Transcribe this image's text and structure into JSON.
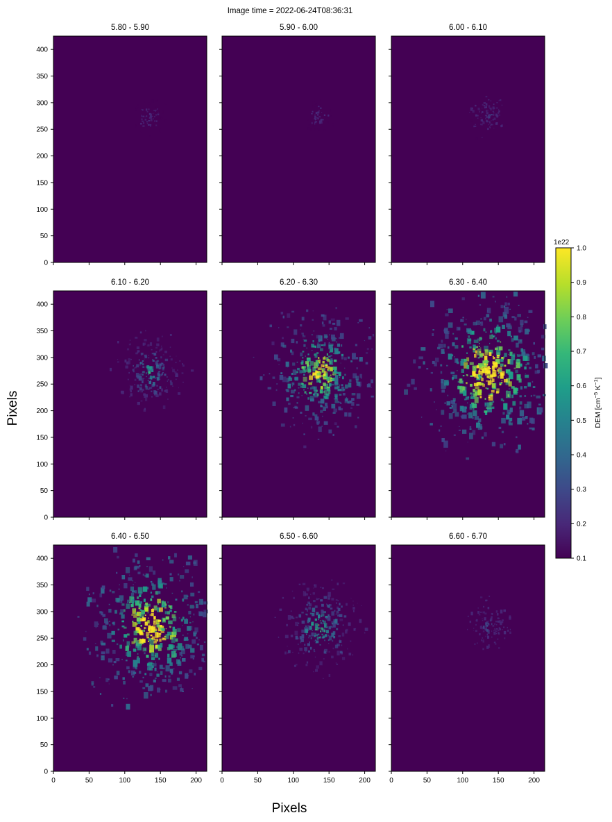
{
  "chart_data": {
    "type": "heatmap",
    "title": "Image time = 2022-06-24T08:36:31",
    "xlabel": "Pixels",
    "ylabel": "Pixels",
    "xlim": [
      0,
      215
    ],
    "ylim": [
      0,
      425
    ],
    "x_ticks": [
      0,
      50,
      100,
      150,
      200
    ],
    "y_ticks": [
      0,
      50,
      100,
      150,
      200,
      250,
      300,
      350,
      400
    ],
    "grid": false,
    "colormap": "viridis",
    "colorbar": {
      "label": "DEM [cm^-5 K^-1]",
      "label_main": "DEM [cm",
      "label_exp1": "−5",
      "label_mid": " K",
      "label_exp2": "−1",
      "label_end": "]",
      "offset_text": "1e22",
      "range": [
        0.1,
        1.0
      ],
      "ticks": [
        "0.1",
        "0.2",
        "0.3",
        "0.4",
        "0.5",
        "0.6",
        "0.7",
        "0.8",
        "0.9",
        "1.0"
      ]
    },
    "panels": [
      {
        "name": "5.80 - 5.90",
        "activity": 0.06
      },
      {
        "name": "5.90 - 6.00",
        "activity": 0.05
      },
      {
        "name": "6.00 - 6.10",
        "activity": 0.12
      },
      {
        "name": "6.10 - 6.20",
        "activity": 0.35
      },
      {
        "name": "6.20 - 6.30",
        "activity": 0.75
      },
      {
        "name": "6.30 - 6.40",
        "activity": 1.0
      },
      {
        "name": "6.40 - 6.50",
        "activity": 0.95
      },
      {
        "name": "6.50 - 6.60",
        "activity": 0.45
      },
      {
        "name": "6.60 - 6.70",
        "activity": 0.15
      }
    ]
  },
  "colors": {
    "viridis": [
      "#440154",
      "#482878",
      "#3e4989",
      "#31688e",
      "#26828e",
      "#1f9e89",
      "#35b779",
      "#6ece58",
      "#b5de2b",
      "#fde725"
    ],
    "background_low": "#440154"
  }
}
